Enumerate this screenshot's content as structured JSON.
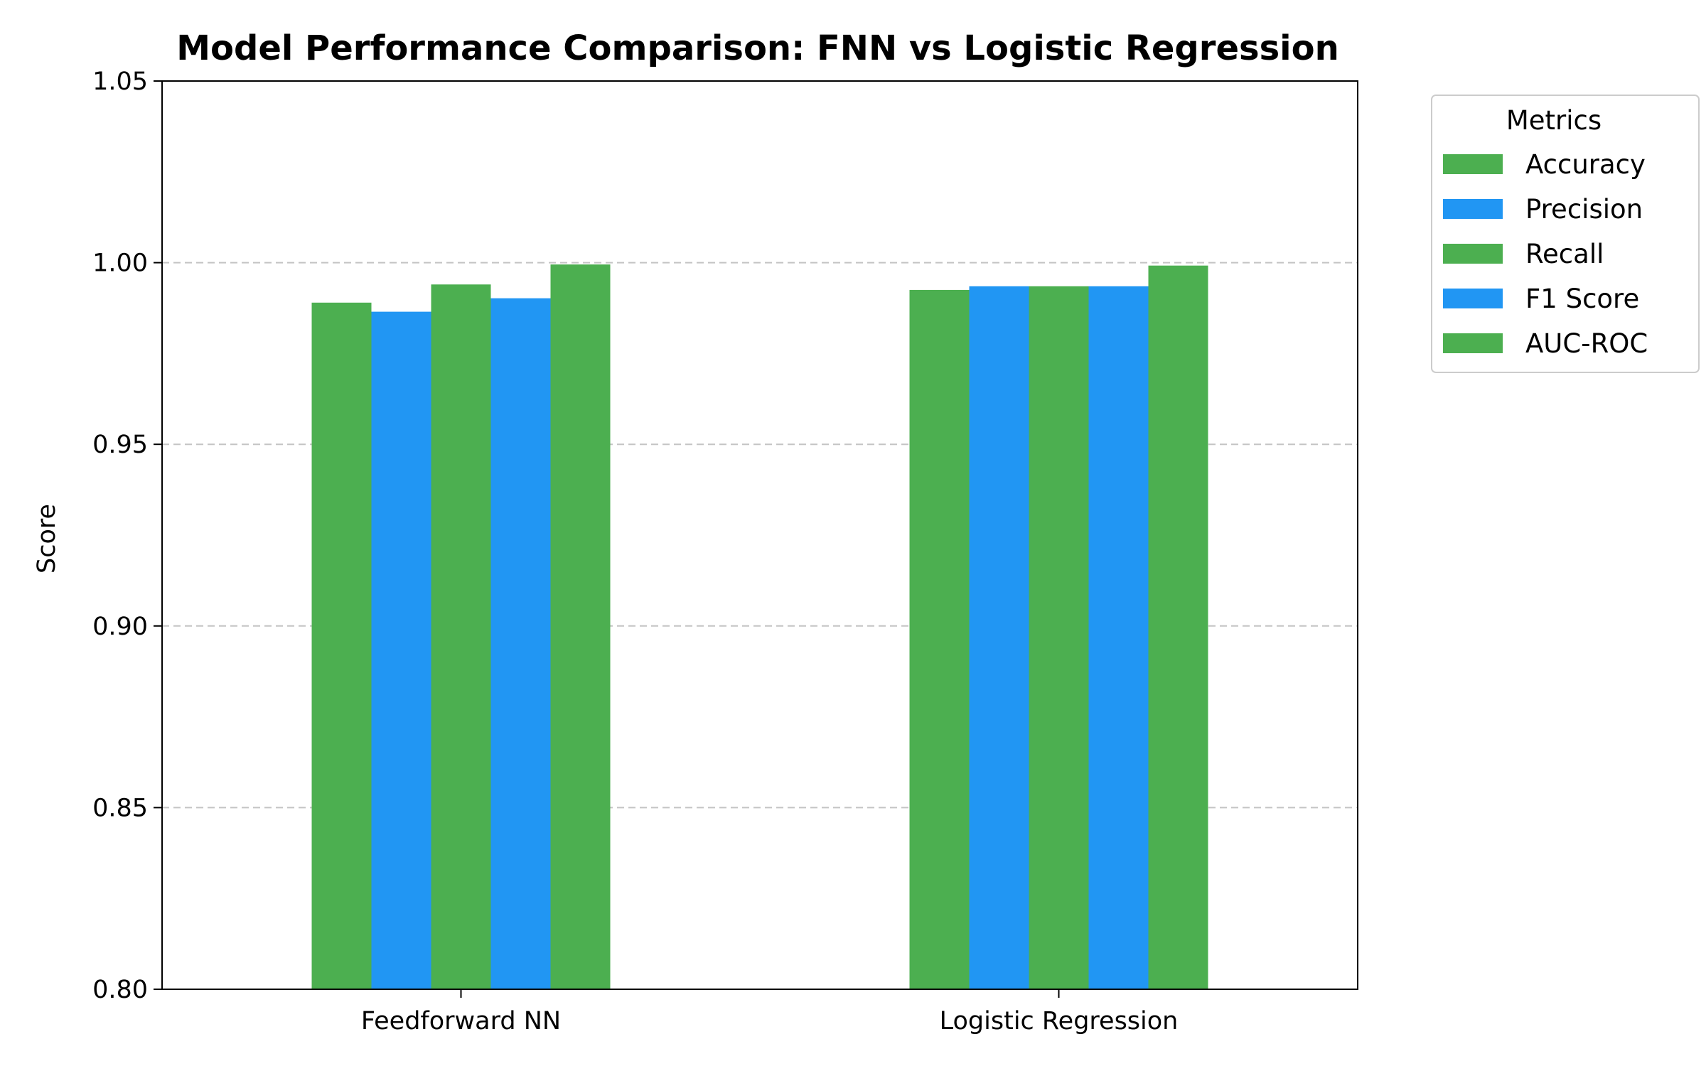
{
  "chart_data": {
    "type": "bar",
    "title": "Model Performance Comparison: FNN vs Logistic Regression",
    "xlabel": "",
    "ylabel": "Score",
    "ylim": [
      0.8,
      1.05
    ],
    "yticks": [
      "0.80",
      "0.85",
      "0.90",
      "0.95",
      "1.00",
      "1.05"
    ],
    "categories": [
      "Feedforward NN",
      "Logistic Regression"
    ],
    "grid": "y-dashed",
    "legend": {
      "title": "Metrics",
      "placement": "outside-top-right"
    },
    "series": [
      {
        "name": "Accuracy",
        "color": "#4caf50",
        "values": [
          0.989,
          0.9925
        ]
      },
      {
        "name": "Precision",
        "color": "#2196f3",
        "values": [
          0.9865,
          0.9935
        ]
      },
      {
        "name": "Recall",
        "color": "#4caf50",
        "values": [
          0.994,
          0.9935
        ]
      },
      {
        "name": "F1 Score",
        "color": "#2196f3",
        "values": [
          0.9902,
          0.9935
        ]
      },
      {
        "name": "AUC-ROC",
        "color": "#4caf50",
        "values": [
          0.9995,
          0.9992
        ]
      }
    ]
  }
}
